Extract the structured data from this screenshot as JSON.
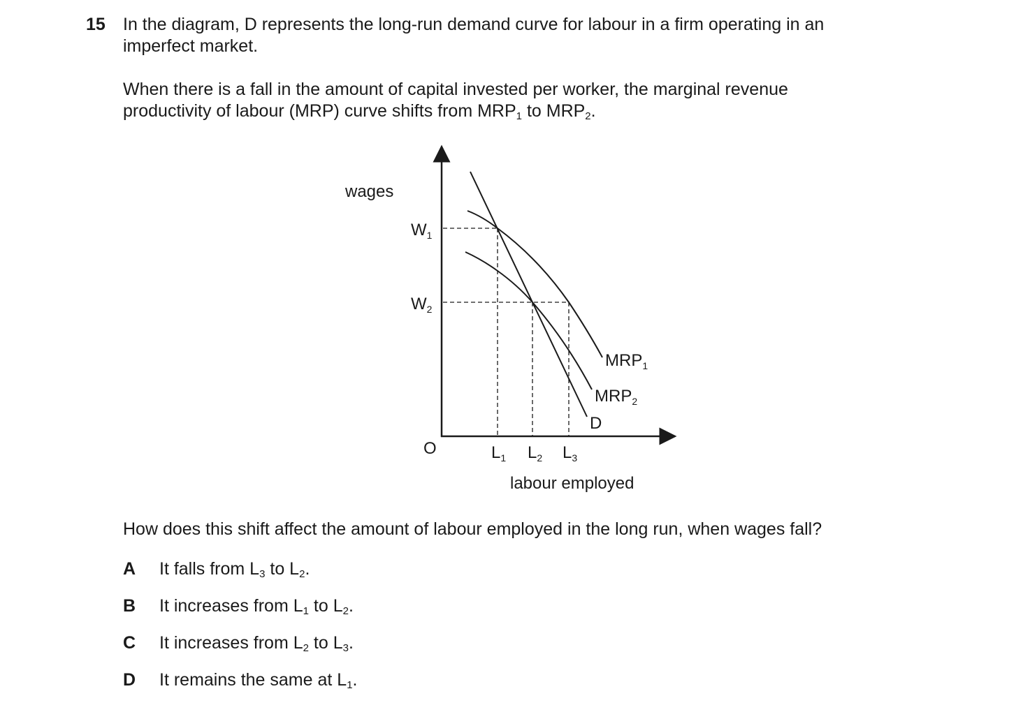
{
  "question": {
    "number": "15",
    "intro_line1": "In the diagram, D represents the long-run demand curve for labour in a firm operating in an",
    "intro_line2": "imperfect market.",
    "context_line1": "When there is a fall in the amount of capital invested per worker, the marginal revenue",
    "context_line2_a": "productivity of labour (MRP) curve shifts from MRP",
    "context_sub1": "1",
    "context_line2_b": " to MRP",
    "context_sub2": "2",
    "context_line2_c": ".",
    "prompt": "How does this shift affect the amount of labour employed in the long run, when wages fall?"
  },
  "diagram": {
    "y_axis_label": "wages",
    "x_axis_label": "labour employed",
    "origin": "O",
    "w1": "W",
    "w1_sub": "1",
    "w2": "W",
    "w2_sub": "2",
    "l1": "L",
    "l1_sub": "1",
    "l2": "L",
    "l2_sub": "2",
    "l3": "L",
    "l3_sub": "3",
    "mrp1": "MRP",
    "mrp1_sub": "1",
    "mrp2": "MRP",
    "mrp2_sub": "2",
    "d": "D"
  },
  "options": [
    {
      "letter": "A",
      "a": "It falls from L",
      "s1": "3",
      "b": " to L",
      "s2": "2",
      "c": "."
    },
    {
      "letter": "B",
      "a": "It increases from L",
      "s1": "1",
      "b": " to L",
      "s2": "2",
      "c": "."
    },
    {
      "letter": "C",
      "a": "It increases from L",
      "s1": "2",
      "b": " to L",
      "s2": "3",
      "c": "."
    },
    {
      "letter": "D",
      "a": "It remains the same at L",
      "s1": "1",
      "b": ".",
      "s2": "",
      "c": ""
    }
  ]
}
